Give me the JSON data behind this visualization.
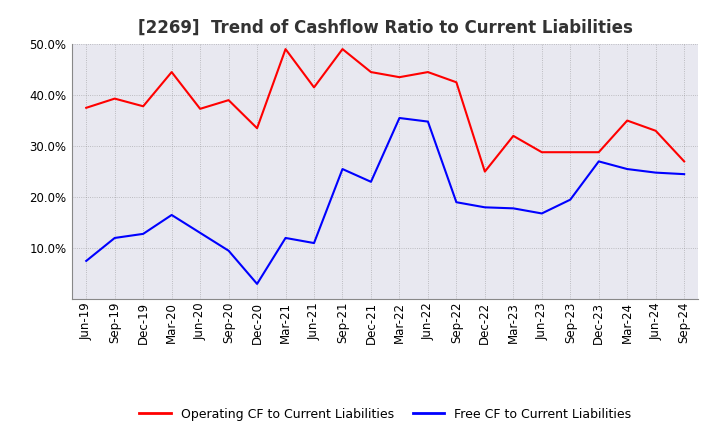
{
  "title": "[2269]  Trend of Cashflow Ratio to Current Liabilities",
  "x_labels": [
    "Jun-19",
    "Sep-19",
    "Dec-19",
    "Mar-20",
    "Jun-20",
    "Sep-20",
    "Dec-20",
    "Mar-21",
    "Jun-21",
    "Sep-21",
    "Dec-21",
    "Mar-22",
    "Jun-22",
    "Sep-22",
    "Dec-22",
    "Mar-23",
    "Jun-23",
    "Sep-23",
    "Dec-23",
    "Mar-24",
    "Jun-24",
    "Sep-24"
  ],
  "operating_cf": [
    0.375,
    0.393,
    0.378,
    0.445,
    0.373,
    0.39,
    0.335,
    0.49,
    0.415,
    0.49,
    0.445,
    0.435,
    0.445,
    0.425,
    0.25,
    0.32,
    0.288,
    0.288,
    0.288,
    0.35,
    0.33,
    0.27
  ],
  "free_cf": [
    0.075,
    0.12,
    0.128,
    0.165,
    0.13,
    0.095,
    0.03,
    0.12,
    0.11,
    0.255,
    0.23,
    0.355,
    0.348,
    0.19,
    0.18,
    0.178,
    0.168,
    0.195,
    0.27,
    0.255,
    0.248,
    0.245
  ],
  "operating_color": "#FF0000",
  "free_color": "#0000FF",
  "ylim": [
    0,
    0.5
  ],
  "yticks": [
    0.1,
    0.2,
    0.3,
    0.4,
    0.5
  ],
  "background_color": "#FFFFFF",
  "plot_bg_color": "#E8E8F0",
  "grid_color": "#888888",
  "legend_operating": "Operating CF to Current Liabilities",
  "legend_free": "Free CF to Current Liabilities",
  "title_fontsize": 12,
  "axis_fontsize": 8.5,
  "legend_fontsize": 9,
  "line_width": 1.5
}
